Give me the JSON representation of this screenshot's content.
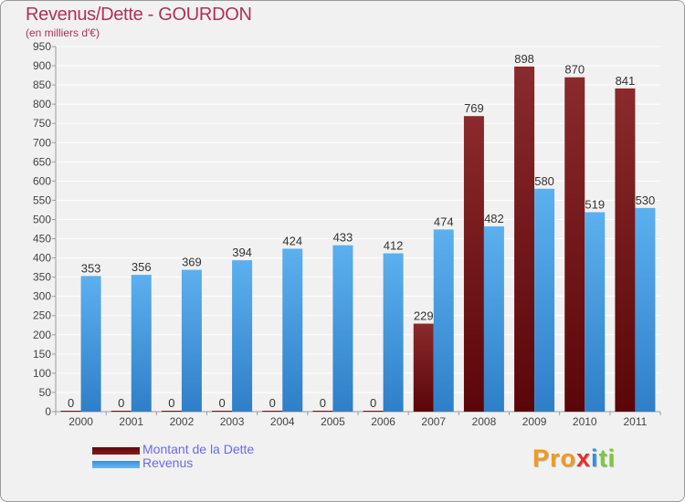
{
  "header": {
    "title": "Revenus/Dette - GOURDON",
    "subtitle": "(en milliers d'€)"
  },
  "legend": {
    "items": [
      {
        "label": "Montant de la Dette",
        "color": "#6e0f10"
      },
      {
        "label": "Revenus",
        "color": "#4ba3e8"
      }
    ]
  },
  "logo": {
    "text": "Proxiti",
    "letters": [
      "Pro",
      "x",
      "i",
      "ti"
    ]
  },
  "chart_data": {
    "type": "bar",
    "title": "Revenus/Dette - GOURDON",
    "ylabel": "(en milliers d'€)",
    "xlabel": "",
    "categories": [
      "2000",
      "2001",
      "2002",
      "2003",
      "2004",
      "2005",
      "2006",
      "2007",
      "2008",
      "2009",
      "2010",
      "2011"
    ],
    "series": [
      {
        "name": "Montant de la Dette",
        "color": "#6e0f10",
        "values": [
          0,
          0,
          0,
          0,
          0,
          0,
          0,
          229,
          769,
          898,
          870,
          841
        ]
      },
      {
        "name": "Revenus",
        "color": "#4ba3e8",
        "values": [
          353,
          356,
          369,
          394,
          424,
          433,
          412,
          474,
          482,
          580,
          519,
          530
        ]
      }
    ],
    "ylim": [
      0,
      950
    ],
    "ytick_step": 50,
    "grid": true,
    "legend_position": "bottom-left"
  }
}
